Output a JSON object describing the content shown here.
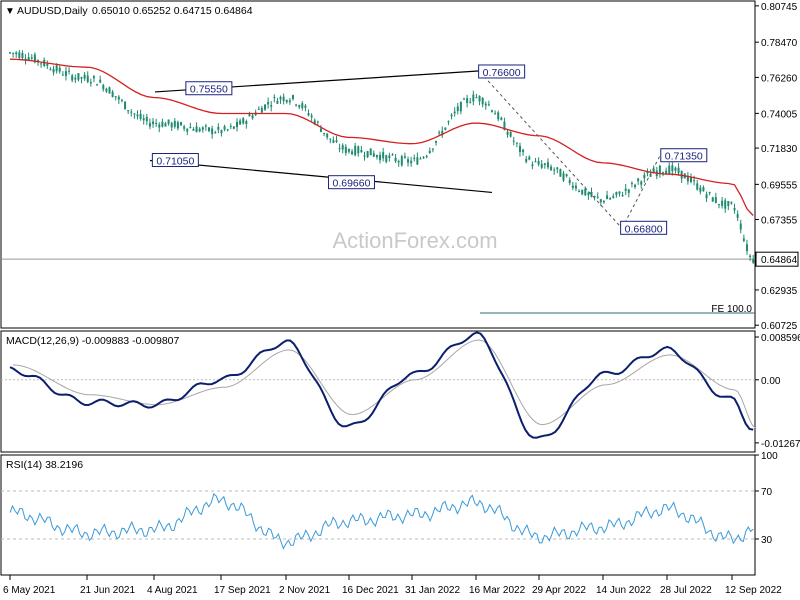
{
  "header": {
    "symbol": "AUDUSD,Daily",
    "ohlc": "0.65010 0.65252 0.64715 0.64864"
  },
  "watermark": "ActionForex.com",
  "colors": {
    "candle": "#1f8a70",
    "ma": "#d42020",
    "macd_line": "#0b1f6e",
    "macd_signal": "#a7a7a7",
    "rsi": "#3a9ad9",
    "trend": "#000000",
    "fe_line": "#2c6f6f",
    "current_price": "#999999",
    "label_border": "#1a237e"
  },
  "chart_data": [
    {
      "type": "line",
      "name": "price-pane",
      "x_ticks": [
        "6 May 2021",
        "21 Jun 2021",
        "4 Aug 2021",
        "17 Sep 2021",
        "2 Nov 2021",
        "16 Dec 2021",
        "31 Jan 2022",
        "16 Mar 2022",
        "29 Apr 2022",
        "14 Jun 2022",
        "28 Jul 2022",
        "12 Sep 2022"
      ],
      "y_ticks": [
        "0.80745",
        "0.78470",
        "0.76260",
        "0.74005",
        "0.71830",
        "0.69555",
        "0.67355",
        "0.64864",
        "0.62935",
        "0.60725"
      ],
      "ylim": [
        0.6055,
        0.8105
      ],
      "current_price": "0.64864",
      "fe_label": "FE 100.0",
      "annotations": [
        {
          "label": "0.75550",
          "x": "11 Sep 2021",
          "y": 0.7555
        },
        {
          "label": "0.71050",
          "x": "20 Aug 2021",
          "y": 0.7105
        },
        {
          "label": "0.69660",
          "x": "20 Dec 2021",
          "y": 0.6966
        },
        {
          "label": "0.76600",
          "x": "5 Apr 2022",
          "y": 0.766
        },
        {
          "label": "0.71350",
          "x": "11 Aug 2022",
          "y": 0.7135
        },
        {
          "label": "0.66800",
          "x": "14 Jul 2022",
          "y": 0.668
        }
      ],
      "x": [
        "6 May 2021",
        "21 Jun 2021",
        "4 Aug 2021",
        "17 Sep 2021",
        "2 Nov 2021",
        "16 Dec 2021",
        "31 Jan 2022",
        "16 Mar 2022",
        "29 Apr 2022",
        "14 Jun 2022",
        "28 Jul 2022",
        "12 Sep 2022",
        "27 Sep 2022"
      ],
      "series": [
        {
          "values": [
            0.778,
            0.762,
            0.734,
            0.729,
            0.75,
            0.717,
            0.71,
            0.75,
            0.708,
            0.686,
            0.705,
            0.682,
            0.6486
          ]
        },
        {
          "name": "",
          "values": [
            0.774,
            0.769,
            0.75,
            0.74,
            0.74,
            0.725,
            0.721,
            0.734,
            0.726,
            0.709,
            0.702,
            0.696,
            0.676
          ]
        }
      ]
    },
    {
      "type": "line",
      "name": "MACD(12,26,9)",
      "title": "MACD(12,26,9) -0.009883 -0.009807",
      "y_ticks": [
        "0.008596",
        "0.00",
        "-0.01267"
      ],
      "ylim": [
        -0.0145,
        0.0098
      ],
      "x": [
        "6 May 2021",
        "21 Jun 2021",
        "4 Aug 2021",
        "17 Sep 2021",
        "2 Nov 2021",
        "16 Dec 2021",
        "31 Jan 2022",
        "16 Mar 2022",
        "29 Apr 2022",
        "14 Jun 2022",
        "28 Jul 2022",
        "12 Sep 2022",
        "27 Sep 2022"
      ],
      "series": [
        {
          "values": [
            0.002,
            -0.0045,
            -0.005,
            0.0,
            0.0075,
            -0.0095,
            0.001,
            0.009,
            -0.012,
            0.001,
            0.006,
            -0.004,
            -0.0099
          ]
        },
        {
          "values": [
            0.003,
            -0.003,
            -0.005,
            -0.0015,
            0.006,
            -0.007,
            0.0,
            0.008,
            -0.009,
            -0.001,
            0.005,
            -0.002,
            -0.0098
          ]
        }
      ]
    },
    {
      "type": "line",
      "name": "RSI(14)",
      "title": "RSI(14) 38.2196",
      "y_ticks": [
        "100",
        "70",
        "30"
      ],
      "ylim": [
        0,
        100
      ],
      "x": [
        "6 May 2021",
        "21 Jun 2021",
        "4 Aug 2021",
        "17 Sep 2021",
        "2 Nov 2021",
        "16 Dec 2021",
        "31 Jan 2022",
        "16 Mar 2022",
        "29 Apr 2022",
        "14 Jun 2022",
        "28 Jul 2022",
        "12 Sep 2022",
        "27 Sep 2022"
      ],
      "series": [
        {
          "values": [
            52,
            35,
            38,
            62,
            28,
            45,
            50,
            60,
            32,
            40,
            55,
            30,
            38
          ]
        }
      ]
    }
  ]
}
